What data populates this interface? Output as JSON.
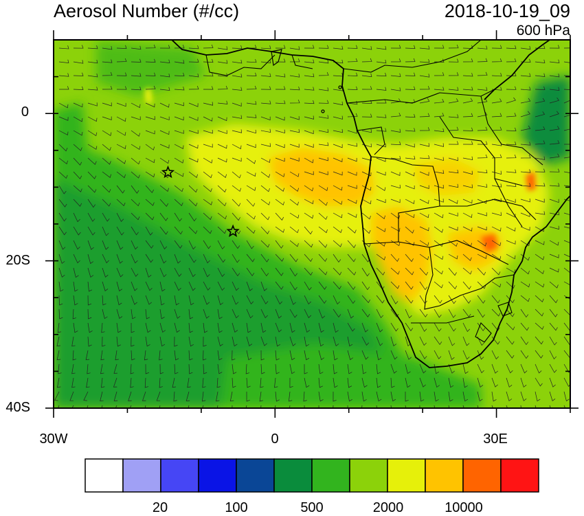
{
  "header": {
    "title": "Aerosol Number (#/cc)",
    "datetime": "2018-10-19_09",
    "level": "600 hPa"
  },
  "axes": {
    "lat_labels": [
      "0",
      "20S",
      "40S"
    ],
    "lon_labels": [
      "30W",
      "0",
      "30E"
    ]
  },
  "colorbar": {
    "colors": [
      "#ffffff",
      "#a0a0f5",
      "#4646f5",
      "#0a14e6",
      "#0a4696",
      "#0a8c3c",
      "#32b41e",
      "#8cd20a",
      "#e6f00a",
      "#ffc300",
      "#ff6400",
      "#ff1414"
    ],
    "labels": [
      "20",
      "100",
      "500",
      "2000",
      "10000"
    ]
  },
  "markers": [
    {
      "name": "star",
      "lon": -14.5,
      "lat": -8.0
    },
    {
      "name": "star",
      "lon": -5.7,
      "lat": -16.0
    }
  ],
  "colors": {
    "ocean_base": "#8cd20a",
    "dark_green": "#32b41e",
    "forest": "#0a8c3c",
    "yellow": "#e6f00a",
    "orange": "#ffc300",
    "red_orange": "#ff6400"
  }
}
